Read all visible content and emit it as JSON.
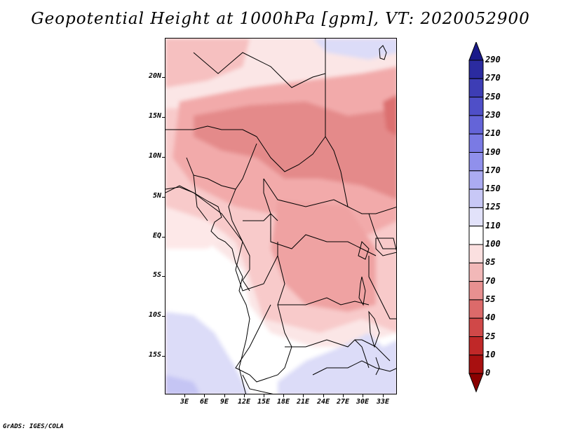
{
  "title": "Geopotential Height at 1000hPa [gpm], VT: 2020052900",
  "map": {
    "variable": "Geopotential Height",
    "level": "1000hPa",
    "units": "gpm",
    "valid_time": "2020052900",
    "lat_labels": [
      "20N",
      "15N",
      "10N",
      "5N",
      "EQ",
      "5S",
      "10S",
      "15S"
    ],
    "lon_labels": [
      "3E",
      "6E",
      "9E",
      "12E",
      "15E",
      "18E",
      "21E",
      "24E",
      "27E",
      "30E",
      "33E"
    ]
  },
  "colorbar": {
    "levels": [
      "290",
      "270",
      "250",
      "230",
      "210",
      "190",
      "170",
      "150",
      "125",
      "110",
      "100",
      "85",
      "70",
      "55",
      "40",
      "25",
      "10",
      "0"
    ],
    "colors": [
      "#1a1a8a",
      "#2b2ba0",
      "#3d3db5",
      "#4f4fc8",
      "#6464d8",
      "#7a7ae4",
      "#9090ec",
      "#ababf2",
      "#c8c8f6",
      "#e2e2fa",
      "#ffffff",
      "#fbe0e0",
      "#f2b8b8",
      "#e89090",
      "#dc6a6a",
      "#d04848",
      "#c02828",
      "#a81010",
      "#8a0000"
    ]
  },
  "credit": "GrADS: IGES/COLA"
}
